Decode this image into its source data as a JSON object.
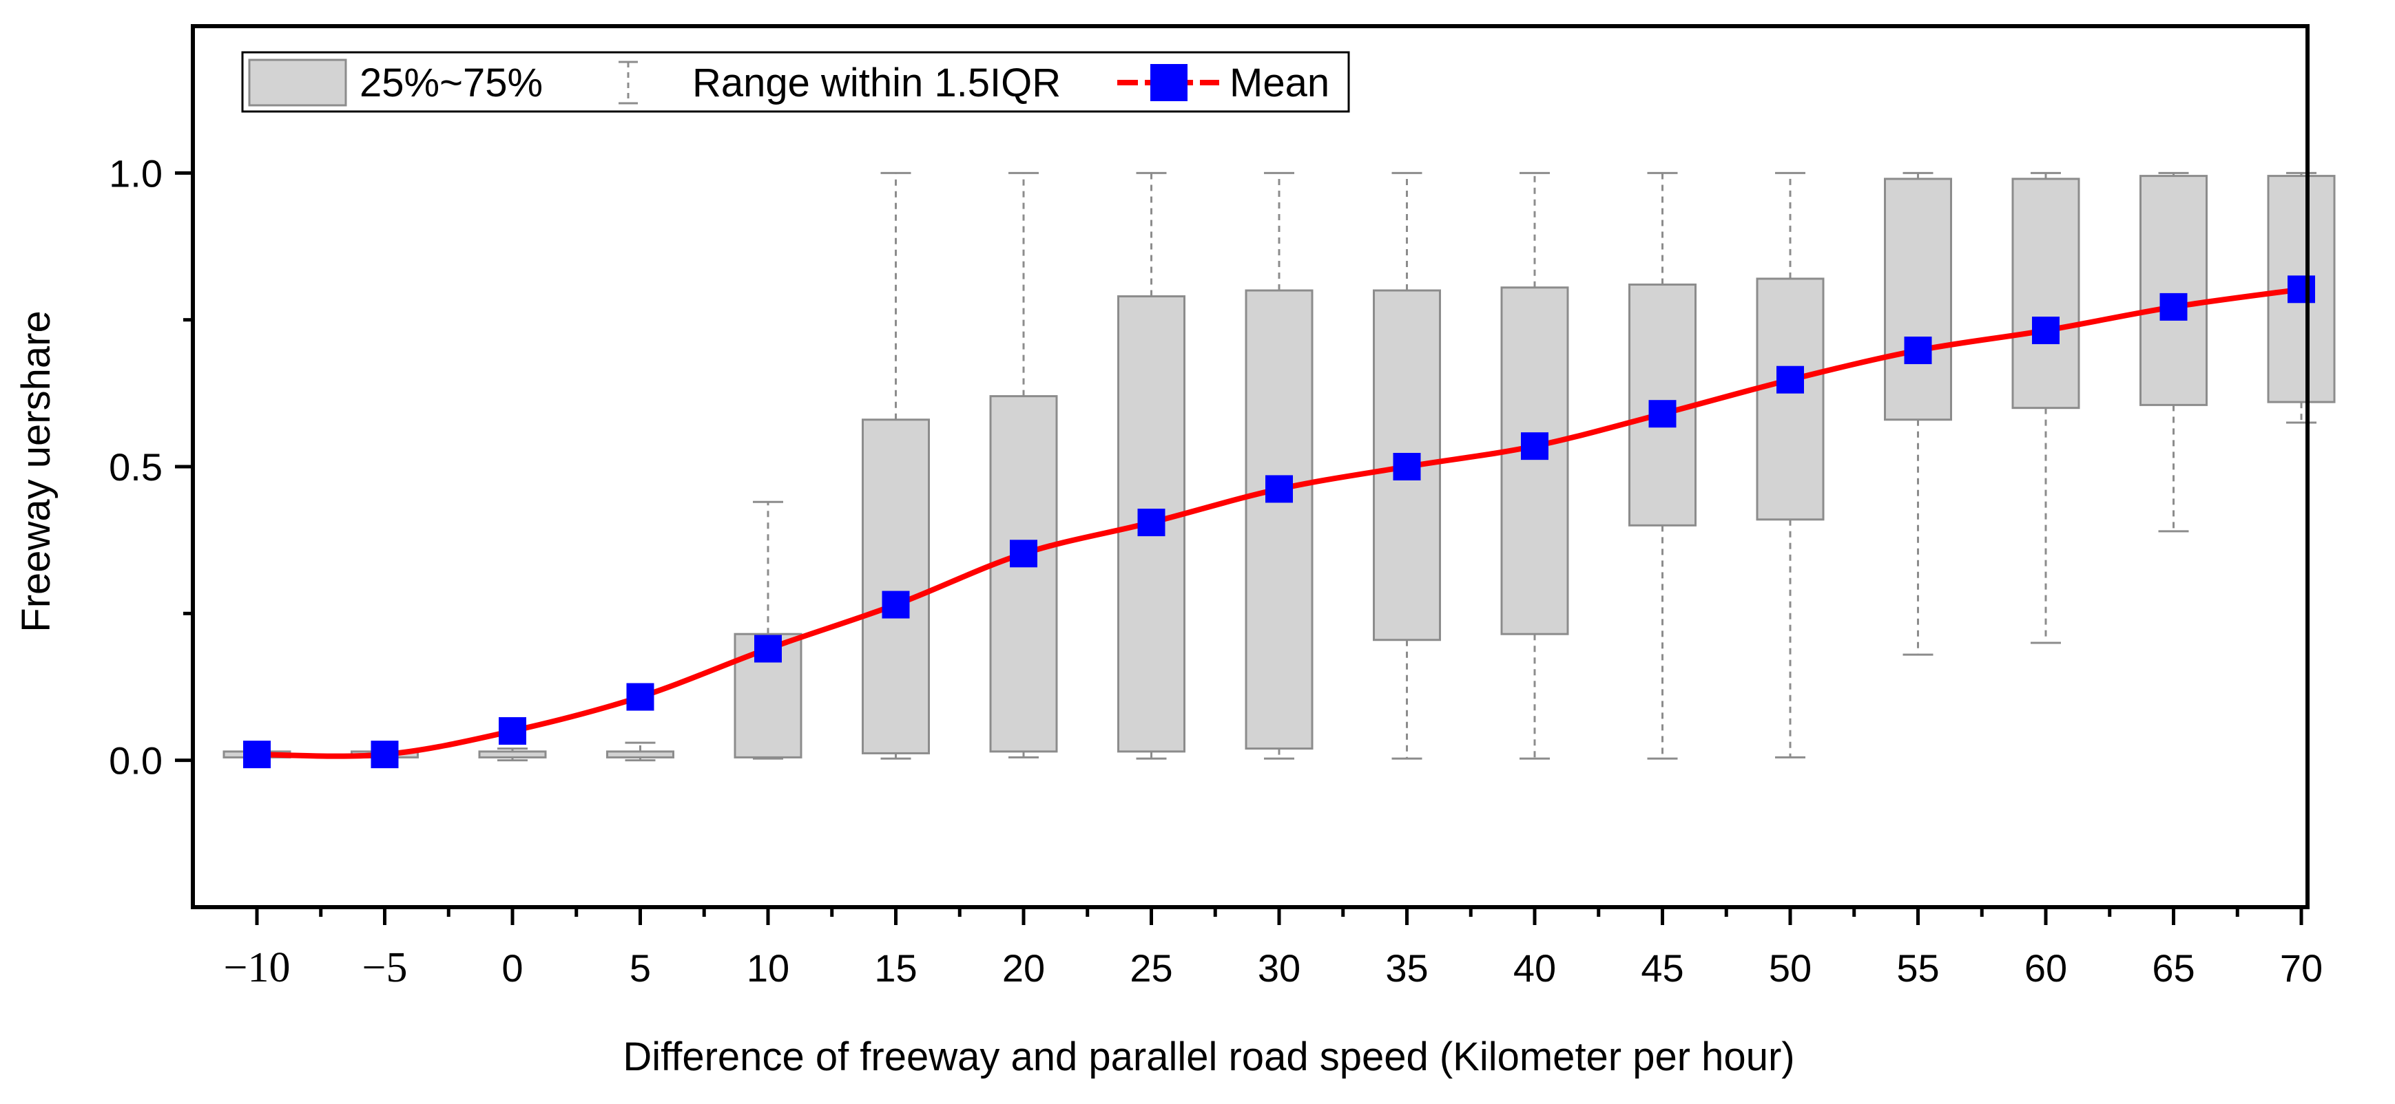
{
  "chart_data": {
    "type": "box",
    "title": "",
    "xlabel": "Difference of freeway and parallel road speed (Kilometer per hour)",
    "ylabel": "Freeway uershare",
    "ylim": [
      -0.25,
      1.25
    ],
    "y_ticks": [
      {
        "value": 0.0,
        "label": "0.0"
      },
      {
        "value": 0.5,
        "label": "0.5"
      },
      {
        "value": 1.0,
        "label": "1.0"
      }
    ],
    "y_minor_ticks": [
      0.25,
      0.75
    ],
    "categories": [
      "−10",
      "−5",
      "0",
      "5",
      "10",
      "15",
      "20",
      "25",
      "30",
      "35",
      "40",
      "45",
      "50",
      "55",
      "60",
      "65",
      "70"
    ],
    "boxes": [
      {
        "x": -10,
        "whisker_low": 0.005,
        "q1": 0.005,
        "q3": 0.015,
        "whisker_high": 0.015
      },
      {
        "x": -5,
        "whisker_low": 0.005,
        "q1": 0.005,
        "q3": 0.015,
        "whisker_high": 0.015
      },
      {
        "x": 0,
        "whisker_low": 0.0,
        "q1": 0.005,
        "q3": 0.015,
        "whisker_high": 0.02
      },
      {
        "x": 5,
        "whisker_low": 0.0,
        "q1": 0.005,
        "q3": 0.015,
        "whisker_high": 0.03
      },
      {
        "x": 10,
        "whisker_low": 0.003,
        "q1": 0.005,
        "q3": 0.215,
        "whisker_high": 0.44
      },
      {
        "x": 15,
        "whisker_low": 0.003,
        "q1": 0.012,
        "q3": 0.58,
        "whisker_high": 1.0
      },
      {
        "x": 20,
        "whisker_low": 0.005,
        "q1": 0.015,
        "q3": 0.62,
        "whisker_high": 1.0
      },
      {
        "x": 25,
        "whisker_low": 0.003,
        "q1": 0.015,
        "q3": 0.79,
        "whisker_high": 1.0
      },
      {
        "x": 30,
        "whisker_low": 0.003,
        "q1": 0.02,
        "q3": 0.8,
        "whisker_high": 1.0
      },
      {
        "x": 35,
        "whisker_low": 0.003,
        "q1": 0.205,
        "q3": 0.8,
        "whisker_high": 1.0
      },
      {
        "x": 40,
        "whisker_low": 0.003,
        "q1": 0.215,
        "q3": 0.805,
        "whisker_high": 1.0
      },
      {
        "x": 45,
        "whisker_low": 0.003,
        "q1": 0.4,
        "q3": 0.81,
        "whisker_high": 1.0
      },
      {
        "x": 50,
        "whisker_low": 0.005,
        "q1": 0.41,
        "q3": 0.82,
        "whisker_high": 1.0
      },
      {
        "x": 55,
        "whisker_low": 0.18,
        "q1": 0.58,
        "q3": 0.99,
        "whisker_high": 1.0
      },
      {
        "x": 60,
        "whisker_low": 0.2,
        "q1": 0.6,
        "q3": 0.99,
        "whisker_high": 1.0
      },
      {
        "x": 65,
        "whisker_low": 0.39,
        "q1": 0.605,
        "q3": 0.995,
        "whisker_high": 1.0
      },
      {
        "x": 70,
        "whisker_low": 0.575,
        "q1": 0.61,
        "q3": 0.995,
        "whisker_high": 1.0
      }
    ],
    "series": [
      {
        "name": "Mean",
        "values": [
          0.01,
          0.01,
          0.05,
          0.108,
          0.19,
          0.265,
          0.352,
          0.405,
          0.462,
          0.5,
          0.535,
          0.59,
          0.648,
          0.698,
          0.732,
          0.772,
          0.802
        ]
      }
    ],
    "legend": {
      "position": "top-left",
      "entries": [
        {
          "kind": "box",
          "label": "25%~75%"
        },
        {
          "kind": "whisker",
          "label": "Range within 1.5IQR"
        },
        {
          "kind": "mean",
          "label": "Mean"
        }
      ]
    },
    "colors": {
      "box_fill": "#d3d3d3",
      "box_stroke": "#8c8c8c",
      "whisker": "#8c8c8c",
      "mean_line": "#ff0000",
      "mean_marker": "#0000ff",
      "axis": "#000000"
    }
  }
}
